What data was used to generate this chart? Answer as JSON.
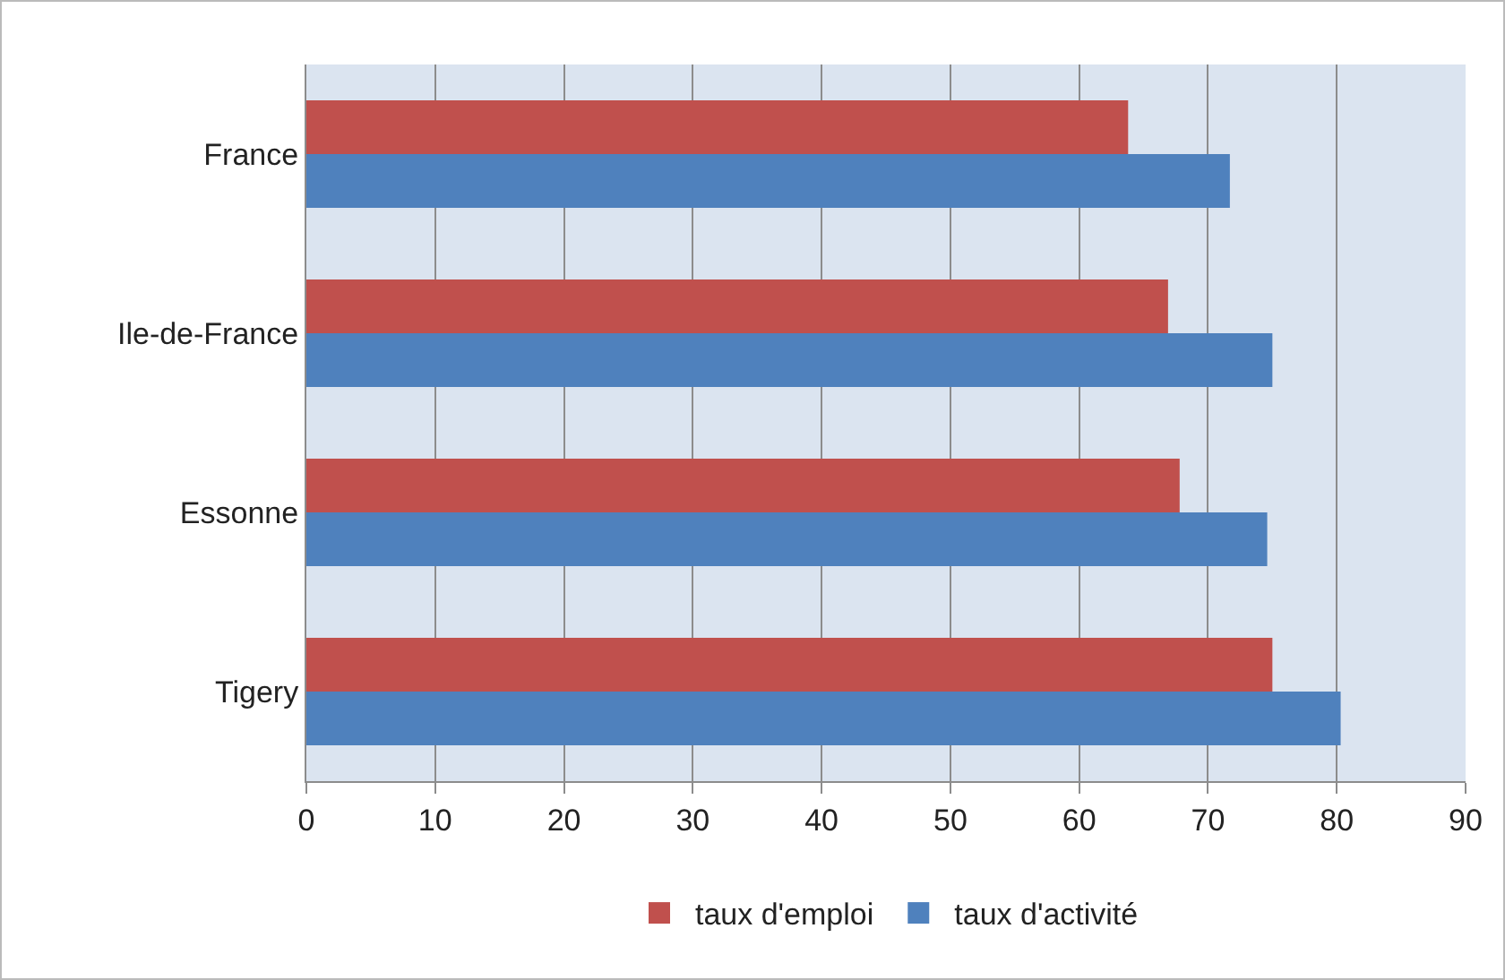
{
  "chart_data": {
    "type": "bar",
    "orientation": "horizontal",
    "categories": [
      "France",
      "Ile-de-France",
      "Essonne",
      "Tigery"
    ],
    "series": [
      {
        "name": "taux d'emploi",
        "color": "#c0504d",
        "values": [
          63.8,
          66.9,
          67.8,
          75.0
        ]
      },
      {
        "name": "taux d'activité",
        "color": "#4f81bd",
        "values": [
          71.7,
          75.0,
          74.6,
          80.3
        ]
      }
    ],
    "xlim": [
      0,
      90
    ],
    "xticks": [
      0,
      10,
      20,
      30,
      40,
      50,
      60,
      70,
      80,
      90
    ],
    "grid": "x",
    "legend": "bottom"
  }
}
